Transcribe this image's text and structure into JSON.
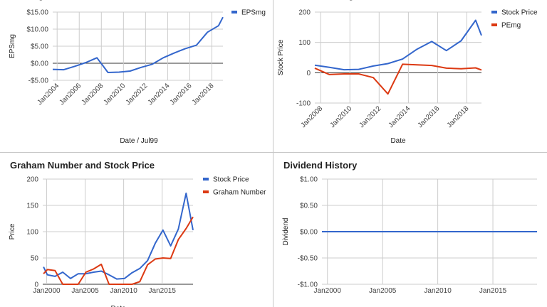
{
  "chart_data": [
    {
      "id": "eps",
      "type": "line",
      "title": "EPSmg",
      "xlabel": "Date / Jul99",
      "ylabel": "EPSmg",
      "xlim": [
        2003.6,
        2019.0
      ],
      "ylim": [
        -5,
        15
      ],
      "xticks": [
        2004,
        2006,
        2008,
        2010,
        2012,
        2014,
        2016,
        2018
      ],
      "xtick_labels": [
        "Jan2004",
        "Jan2006",
        "Jan2008",
        "Jan2010",
        "Jan2012",
        "Jan2014",
        "Jan2016",
        "Jan2018"
      ],
      "yticks": [
        -5,
        0,
        5,
        10,
        15
      ],
      "ytick_labels": [
        "-$5.00",
        "$0.00",
        "$5.00",
        "$10.00",
        "$15.00"
      ],
      "grid": true,
      "legend": "top-right",
      "series": [
        {
          "name": "EPSmg",
          "color": "#3366cc",
          "x": [
            2003.6,
            2004.6,
            2005.6,
            2006.6,
            2007.6,
            2008.6,
            2009.6,
            2010.6,
            2011.6,
            2012.6,
            2013.6,
            2014.6,
            2015.6,
            2016.6,
            2017.6,
            2018.6,
            2019.0
          ],
          "y": [
            -1.8,
            -1.9,
            -0.9,
            0.2,
            1.6,
            -2.7,
            -2.6,
            -2.3,
            -1.2,
            -0.3,
            1.6,
            3.0,
            4.3,
            5.3,
            9.1,
            11.0,
            13.5
          ]
        }
      ]
    },
    {
      "id": "pe",
      "type": "line",
      "title": "Price and PEmg",
      "xlabel": "Date",
      "ylabel": "Stock Price",
      "xlim": [
        2007.6,
        2019.0
      ],
      "ylim": [
        -100,
        200
      ],
      "xticks": [
        2008,
        2010,
        2012,
        2014,
        2016,
        2018
      ],
      "xtick_labels": [
        "Jan2008",
        "Jan2010",
        "Jan2012",
        "Jan2014",
        "Jan2016",
        "Jan2018"
      ],
      "yticks": [
        -100,
        0,
        100,
        200
      ],
      "ytick_labels": [
        "-100",
        "0",
        "100",
        "200"
      ],
      "grid": true,
      "legend": "top-right",
      "series": [
        {
          "name": "Stock Price",
          "color": "#3366cc",
          "x": [
            2007.6,
            2008.6,
            2009.6,
            2010.6,
            2011.6,
            2012.6,
            2013.6,
            2014.6,
            2015.6,
            2016.6,
            2017.6,
            2018.6,
            2019.0
          ],
          "y": [
            25,
            18,
            10,
            11,
            22,
            30,
            45,
            78,
            103,
            73,
            105,
            173,
            123
          ]
        },
        {
          "name": "PEmg",
          "color": "#dc3912",
          "x": [
            2007.6,
            2008.6,
            2009.6,
            2010.6,
            2011.6,
            2012.6,
            2013.6,
            2014.6,
            2015.6,
            2016.6,
            2017.6,
            2018.6,
            2019.0
          ],
          "y": [
            15,
            -6,
            -4,
            -4,
            -16,
            -70,
            28,
            26,
            24,
            15,
            13,
            16,
            9
          ]
        }
      ]
    },
    {
      "id": "graham",
      "type": "line",
      "title": "Graham Number and Stock Price",
      "xlabel": "Date",
      "ylabel": "Price",
      "xlim": [
        1999.5,
        2019.0
      ],
      "ylim": [
        0,
        200
      ],
      "xticks": [
        2000,
        2005,
        2010,
        2015
      ],
      "xtick_labels": [
        "Jan2000",
        "Jan2005",
        "Jan2010",
        "Jan2015"
      ],
      "yticks": [
        0,
        50,
        100,
        150,
        200
      ],
      "ytick_labels": [
        "0",
        "50",
        "100",
        "150",
        "200"
      ],
      "grid": true,
      "legend": "top-right",
      "series": [
        {
          "name": "Stock Price",
          "color": "#3366cc",
          "x": [
            1999.6,
            2000.1,
            2001.1,
            2002.1,
            2003.1,
            2004.1,
            2005.1,
            2006.1,
            2007.1,
            2008.1,
            2009.1,
            2010.1,
            2011.1,
            2012.1,
            2013.1,
            2014.1,
            2015.1,
            2016.1,
            2017.1,
            2018.1,
            2019.0
          ],
          "y": [
            33,
            18,
            15,
            23,
            11,
            20,
            20,
            23,
            25,
            18,
            10,
            11,
            22,
            30,
            45,
            78,
            103,
            73,
            105,
            173,
            103
          ]
        },
        {
          "name": "Graham Number",
          "color": "#dc3912",
          "x": [
            1999.6,
            2000.1,
            2001.1,
            2002.1,
            2003.1,
            2004.1,
            2005.1,
            2006.1,
            2007.1,
            2008.1,
            2009.1,
            2010.1,
            2011.1,
            2012.1,
            2013.1,
            2014.1,
            2015.1,
            2016.1,
            2017.1,
            2018.1,
            2019.0
          ],
          "y": [
            20,
            28,
            26,
            0,
            0,
            0,
            23,
            29,
            38,
            0,
            0,
            0,
            0,
            5,
            37,
            48,
            50,
            49,
            85,
            106,
            128
          ]
        }
      ]
    },
    {
      "id": "dividend",
      "type": "line",
      "title": "Dividend History",
      "xlabel": "",
      "ylabel": "Dividend",
      "xlim": [
        1999.5,
        2019.0
      ],
      "ylim": [
        -1,
        1
      ],
      "xticks": [
        2000,
        2005,
        2010,
        2015
      ],
      "xtick_labels": [
        "Jan2000",
        "Jan2005",
        "Jan2010",
        "Jan2015"
      ],
      "yticks": [
        -1,
        -0.5,
        0,
        0.5,
        1
      ],
      "ytick_labels": [
        "-$1.00",
        "-$0.50",
        "$0.00",
        "$0.50",
        "$1.00"
      ],
      "grid": true,
      "legend": "none",
      "series": [
        {
          "color": "#3366cc",
          "x": [
            1999.5,
            2019.0
          ],
          "y": [
            0,
            0
          ]
        }
      ]
    }
  ]
}
